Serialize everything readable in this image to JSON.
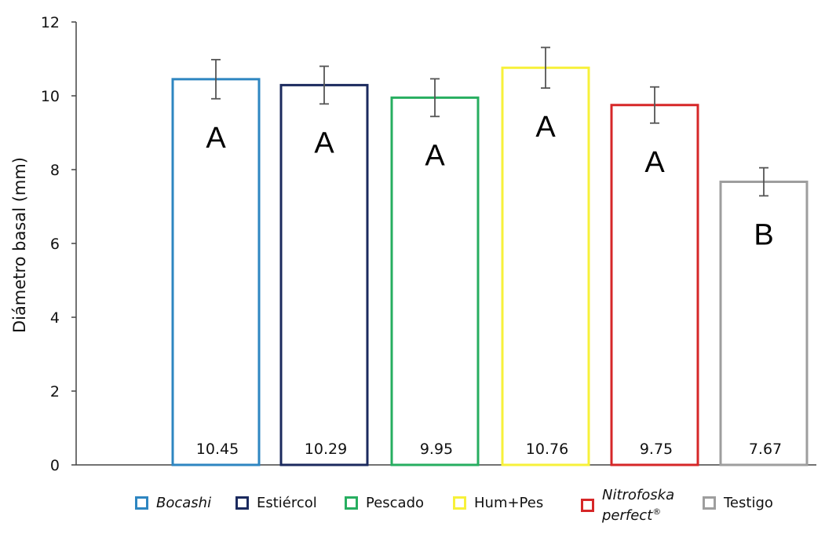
{
  "chart_data": {
    "type": "bar",
    "ylabel": "Diámetro basal (mm)",
    "xlabel": "",
    "ylim": [
      0,
      12
    ],
    "yticks": [
      0,
      2,
      4,
      6,
      8,
      10,
      12
    ],
    "categories": [
      "Bocashi",
      "Estiércol",
      "Pescado",
      "Hum+Pes",
      "Nitrofoska perfect®",
      "Testigo"
    ],
    "values": [
      10.45,
      10.29,
      9.95,
      10.76,
      9.75,
      7.67
    ],
    "value_labels": [
      "10.45",
      "10.29",
      "9.95",
      "10.76",
      "9.75",
      "7.67"
    ],
    "error": [
      0.53,
      0.51,
      0.51,
      0.55,
      0.49,
      0.38
    ],
    "significance": [
      "A",
      "A",
      "A",
      "A",
      "A",
      "B"
    ],
    "colors": [
      "#2E86C1",
      "#1B2A5E",
      "#27AE60",
      "#F7F13A",
      "#D62728",
      "#9E9E9E"
    ],
    "grid": false,
    "legend_position": "bottom"
  },
  "legend": {
    "items": [
      {
        "text": "Bocashi",
        "italic": true
      },
      {
        "text": "Estiércol",
        "italic": false
      },
      {
        "text": "Pescado",
        "italic": false
      },
      {
        "text": "Hum+Pes",
        "italic": false
      },
      {
        "text": "Nitrofoska",
        "text2": "perfect",
        "sup": "®",
        "italic": true
      },
      {
        "text": "Testigo",
        "italic": false
      }
    ]
  }
}
